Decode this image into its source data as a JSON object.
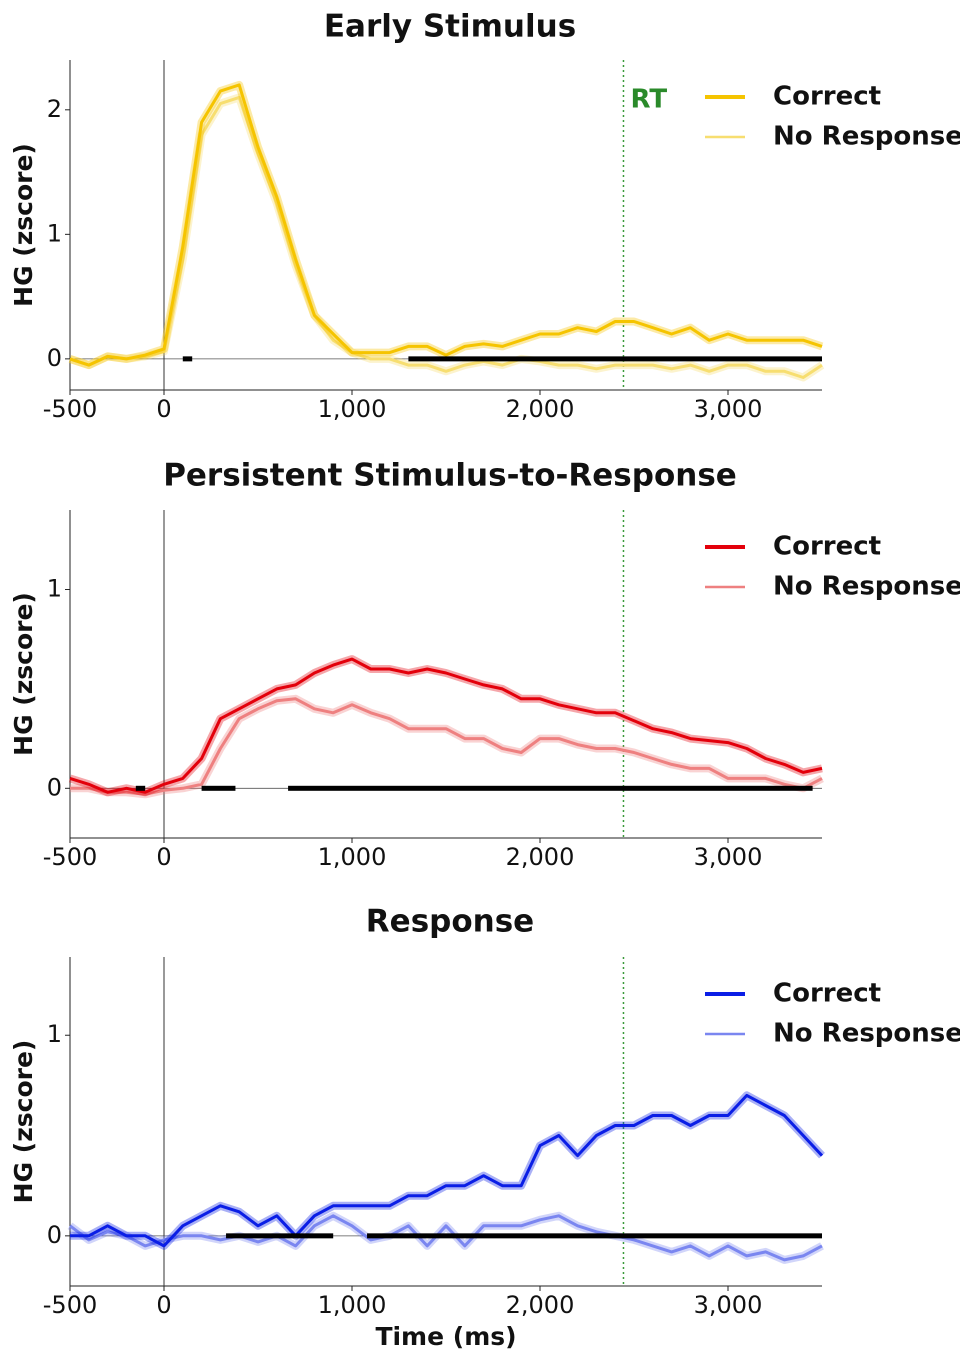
{
  "chart_data": [
    {
      "type": "line",
      "title": "Early Stimulus",
      "ylabel": "HG (zscore)",
      "x": [
        -500,
        -400,
        -300,
        -200,
        -100,
        0,
        100,
        200,
        300,
        400,
        500,
        600,
        700,
        800,
        900,
        1000,
        1100,
        1200,
        1300,
        1400,
        1500,
        1600,
        1700,
        1800,
        1900,
        2000,
        2100,
        2200,
        2300,
        2400,
        2500,
        2600,
        2700,
        2800,
        2900,
        3000,
        3100,
        3200,
        3300,
        3400,
        3500
      ],
      "series": [
        {
          "name": "Correct",
          "color": "#f5c400",
          "values": [
            0.0,
            -0.05,
            0.02,
            0.0,
            0.03,
            0.08,
            0.9,
            1.9,
            2.15,
            2.2,
            1.7,
            1.3,
            0.8,
            0.35,
            0.2,
            0.05,
            0.05,
            0.05,
            0.1,
            0.1,
            0.03,
            0.1,
            0.12,
            0.1,
            0.15,
            0.2,
            0.2,
            0.25,
            0.22,
            0.3,
            0.3,
            0.25,
            0.2,
            0.25,
            0.15,
            0.2,
            0.15,
            0.15,
            0.15,
            0.15,
            0.1
          ]
        },
        {
          "name": "No Response",
          "color": "#f7de70",
          "values": [
            0.0,
            -0.05,
            0.02,
            0.0,
            0.02,
            0.06,
            0.8,
            1.8,
            2.05,
            2.1,
            1.65,
            1.25,
            0.75,
            0.35,
            0.15,
            0.05,
            0.0,
            0.0,
            -0.05,
            -0.05,
            -0.1,
            -0.05,
            -0.02,
            -0.05,
            0.0,
            -0.02,
            -0.05,
            -0.05,
            -0.08,
            -0.05,
            -0.05,
            -0.05,
            -0.08,
            -0.05,
            -0.1,
            -0.05,
            -0.05,
            -0.1,
            -0.1,
            -0.15,
            -0.05
          ]
        }
      ],
      "xlim": [
        -500,
        3500
      ],
      "ylim": [
        -0.25,
        2.4
      ],
      "xticks": [
        -500,
        0,
        {
          "value": 1000,
          "label": "1,000"
        },
        {
          "value": 2000,
          "label": "2,000"
        },
        {
          "value": 3000,
          "label": "3,000"
        }
      ],
      "yticks": [
        0,
        1,
        2
      ],
      "rt": 2444,
      "rt_label": "RT",
      "significance": [
        [
          100,
          150
        ],
        [
          1300,
          3500
        ]
      ],
      "legend": "upper right"
    },
    {
      "type": "line",
      "title": "Persistent Stimulus-to-Response",
      "ylabel": "HG (zscore)",
      "x": [
        -500,
        -400,
        -300,
        -200,
        -100,
        0,
        100,
        200,
        300,
        400,
        500,
        600,
        700,
        800,
        900,
        1000,
        1100,
        1200,
        1300,
        1400,
        1500,
        1600,
        1700,
        1800,
        1900,
        2000,
        2100,
        2200,
        2300,
        2400,
        2500,
        2600,
        2700,
        2800,
        2900,
        3000,
        3100,
        3200,
        3300,
        3400,
        3500
      ],
      "series": [
        {
          "name": "Correct",
          "color": "#e3000b",
          "values": [
            0.05,
            0.02,
            -0.02,
            0.0,
            -0.02,
            0.02,
            0.05,
            0.15,
            0.35,
            0.4,
            0.45,
            0.5,
            0.52,
            0.58,
            0.62,
            0.65,
            0.6,
            0.6,
            0.58,
            0.6,
            0.58,
            0.55,
            0.52,
            0.5,
            0.45,
            0.45,
            0.42,
            0.4,
            0.38,
            0.38,
            0.34,
            0.3,
            0.28,
            0.25,
            0.24,
            0.23,
            0.2,
            0.15,
            0.12,
            0.08,
            0.1
          ]
        },
        {
          "name": "No Response",
          "color": "#ee8080",
          "values": [
            0.0,
            0.0,
            -0.02,
            -0.02,
            -0.03,
            -0.01,
            0.0,
            0.02,
            0.2,
            0.35,
            0.4,
            0.44,
            0.45,
            0.4,
            0.38,
            0.42,
            0.38,
            0.35,
            0.3,
            0.3,
            0.3,
            0.25,
            0.25,
            0.2,
            0.18,
            0.25,
            0.25,
            0.22,
            0.2,
            0.2,
            0.18,
            0.15,
            0.12,
            0.1,
            0.1,
            0.05,
            0.05,
            0.05,
            0.02,
            0.0,
            0.05
          ]
        }
      ],
      "xlim": [
        -500,
        3500
      ],
      "ylim": [
        -0.25,
        1.4
      ],
      "xticks": [
        -500,
        0,
        {
          "value": 1000,
          "label": "1,000"
        },
        {
          "value": 2000,
          "label": "2,000"
        },
        {
          "value": 3000,
          "label": "3,000"
        }
      ],
      "yticks": [
        0,
        1
      ],
      "rt": 2444,
      "significance": [
        [
          -150,
          -100
        ],
        [
          200,
          380
        ],
        [
          660,
          3450
        ]
      ],
      "legend": "upper right"
    },
    {
      "type": "line",
      "title": "Response",
      "ylabel": "HG (zscore)",
      "xlabel": "Time (ms)",
      "x": [
        -500,
        -400,
        -300,
        -200,
        -100,
        0,
        100,
        200,
        300,
        400,
        500,
        600,
        700,
        800,
        900,
        1000,
        1100,
        1200,
        1300,
        1400,
        1500,
        1600,
        1700,
        1800,
        1900,
        2000,
        2100,
        2200,
        2300,
        2400,
        2500,
        2600,
        2700,
        2800,
        2900,
        3000,
        3100,
        3200,
        3300,
        3400,
        3500
      ],
      "series": [
        {
          "name": "Correct",
          "color": "#0a1ee6",
          "values": [
            0.0,
            0.0,
            0.05,
            0.0,
            0.0,
            -0.05,
            0.05,
            0.1,
            0.15,
            0.12,
            0.05,
            0.1,
            0.0,
            0.1,
            0.15,
            0.15,
            0.15,
            0.15,
            0.2,
            0.2,
            0.25,
            0.25,
            0.3,
            0.25,
            0.25,
            0.45,
            0.5,
            0.4,
            0.5,
            0.55,
            0.55,
            0.6,
            0.6,
            0.55,
            0.6,
            0.6,
            0.7,
            0.65,
            0.6,
            0.5,
            0.4
          ]
        },
        {
          "name": "No Response",
          "color": "#7a86f0",
          "values": [
            0.05,
            -0.02,
            0.02,
            0.0,
            -0.05,
            -0.02,
            0.0,
            0.0,
            -0.02,
            0.0,
            -0.03,
            0.0,
            -0.05,
            0.05,
            0.1,
            0.05,
            -0.02,
            0.0,
            0.05,
            -0.05,
            0.05,
            -0.05,
            0.05,
            0.05,
            0.05,
            0.08,
            0.1,
            0.05,
            0.02,
            0.0,
            -0.02,
            -0.05,
            -0.08,
            -0.05,
            -0.1,
            -0.05,
            -0.1,
            -0.08,
            -0.12,
            -0.1,
            -0.05
          ]
        }
      ],
      "xlim": [
        -500,
        3500
      ],
      "ylim": [
        -0.25,
        1.39
      ],
      "xticks": [
        -500,
        0,
        {
          "value": 1000,
          "label": "1,000"
        },
        {
          "value": 2000,
          "label": "2,000"
        },
        {
          "value": 3000,
          "label": "3,000"
        }
      ],
      "yticks": [
        0,
        1
      ],
      "rt": 2444,
      "significance": [
        [
          330,
          900
        ],
        [
          1080,
          3500
        ]
      ],
      "legend": "upper right"
    }
  ]
}
